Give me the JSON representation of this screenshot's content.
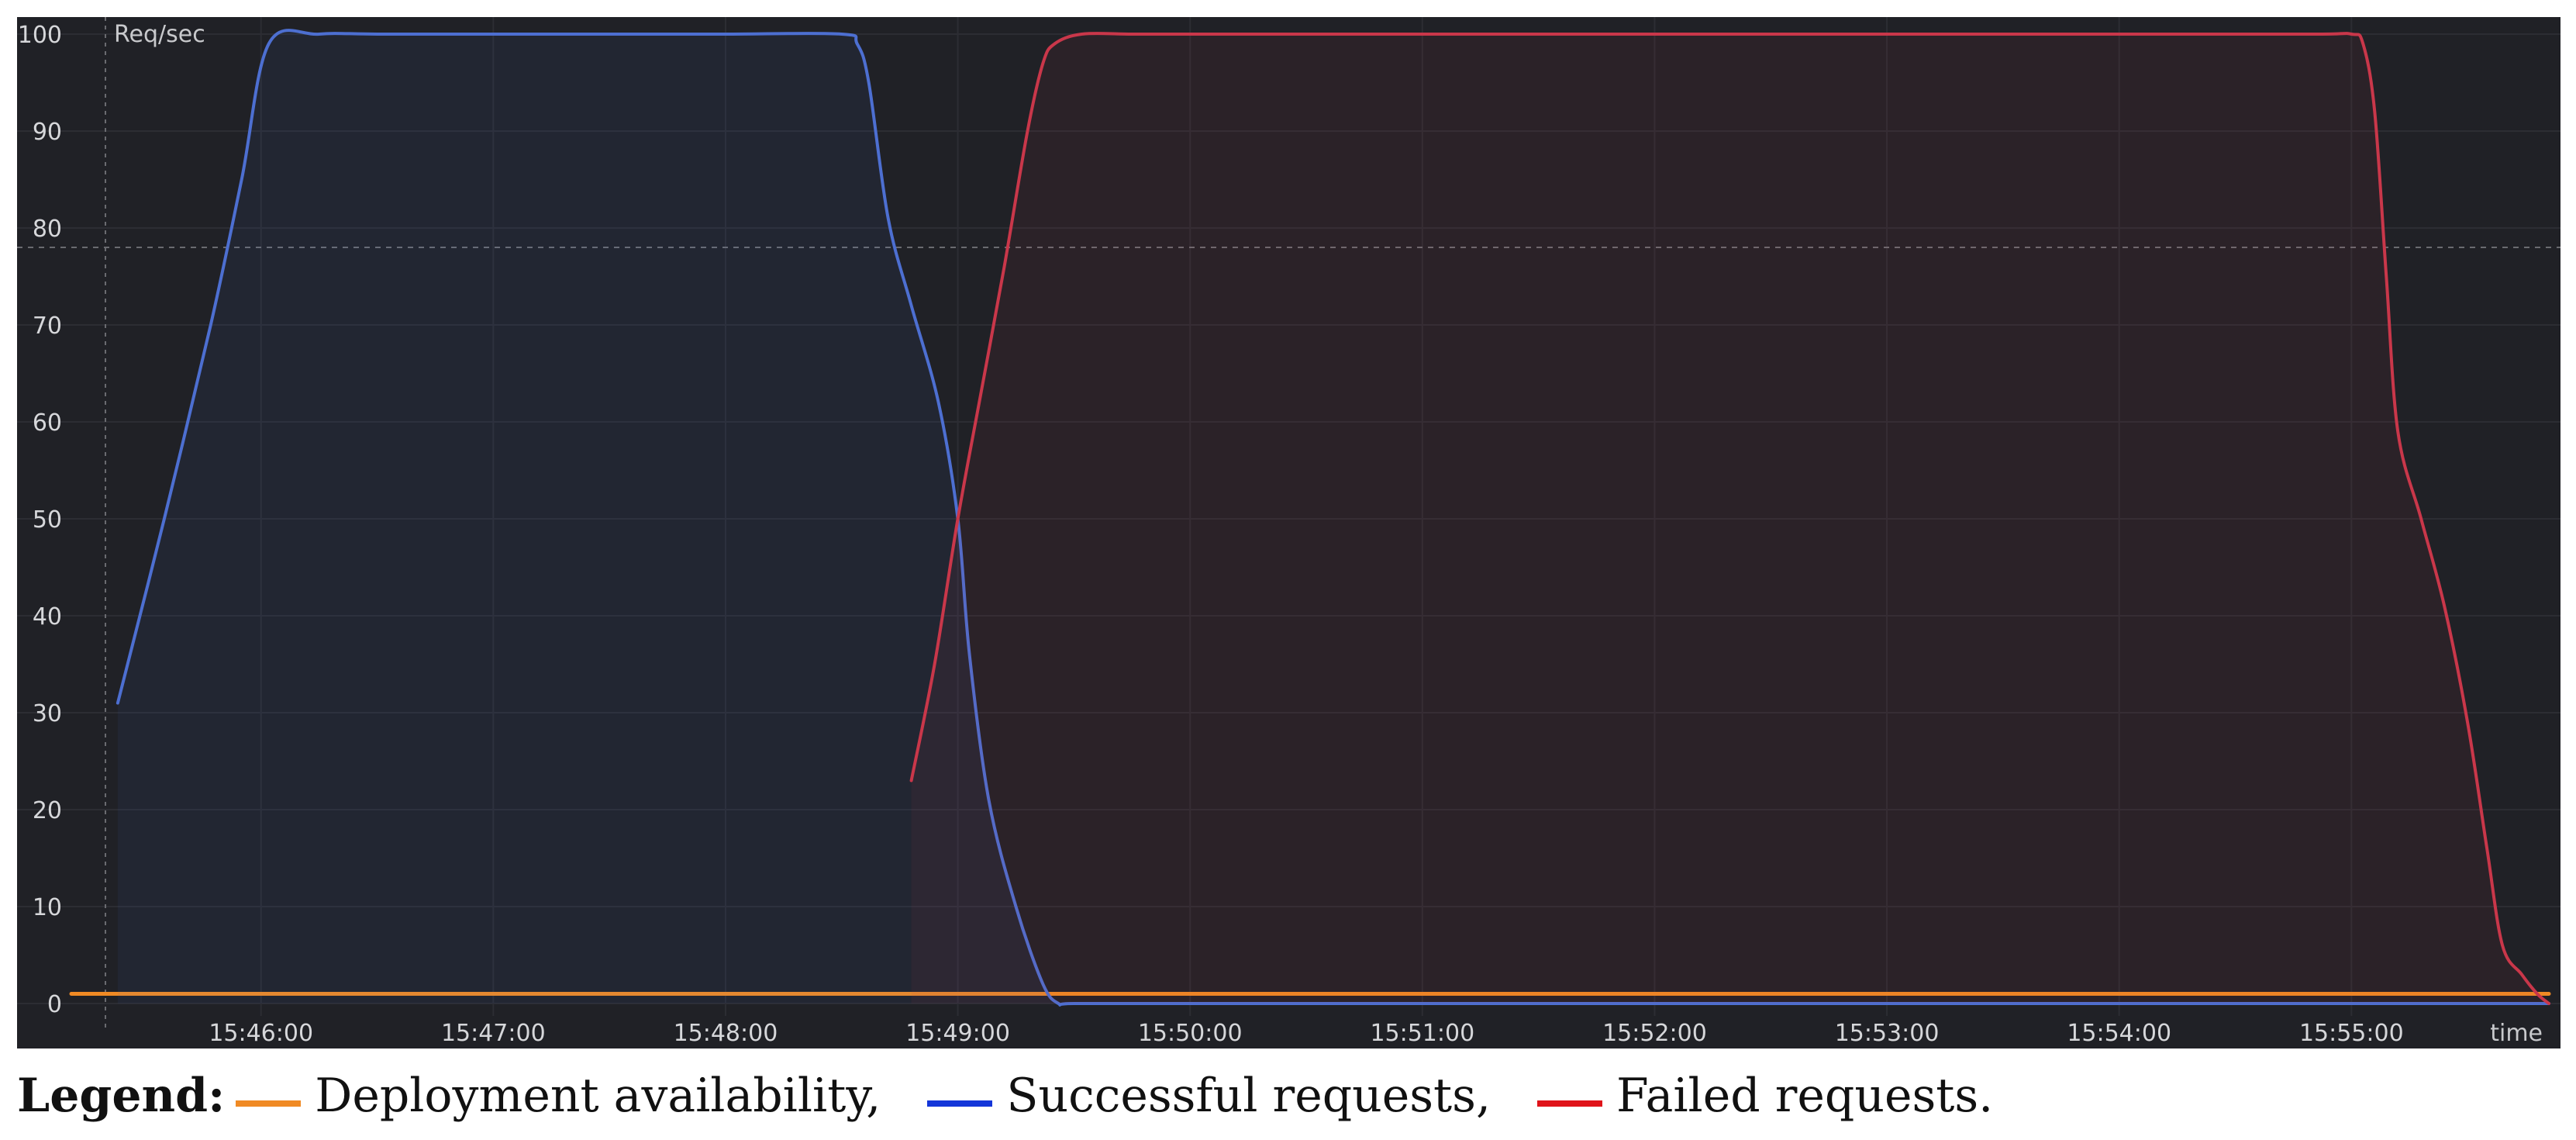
{
  "chart_data": {
    "type": "line",
    "y_unit_label": "Req/sec",
    "xlabel": "time",
    "ylim": [
      0,
      100
    ],
    "y_ticks": [
      0,
      10,
      20,
      30,
      40,
      50,
      60,
      70,
      80,
      90,
      100
    ],
    "x_ticks": [
      "15:46:00",
      "15:47:00",
      "15:48:00",
      "15:49:00",
      "15:50:00",
      "15:51:00",
      "15:52:00",
      "15:53:00",
      "15:54:00",
      "15:55:00"
    ],
    "xlim": [
      "15:45:11",
      "15:55:51"
    ],
    "grid": true,
    "threshold_dashed_line": 78,
    "background_color": "#202126",
    "series": [
      {
        "key": "availability",
        "color": "#f08a24",
        "fill": false,
        "x": [
          "15:45:11",
          "15:55:51"
        ],
        "y": [
          1,
          1
        ]
      },
      {
        "key": "success",
        "color": "#4d6fd1",
        "fill": true,
        "x": [
          "15:45:23",
          "15:45:35",
          "15:45:47",
          "15:45:55",
          "15:46:02",
          "15:46:15",
          "15:46:30",
          "15:47:00",
          "15:47:30",
          "15:48:00",
          "15:48:30",
          "15:48:34",
          "15:48:37",
          "15:48:42",
          "15:48:48",
          "15:48:55",
          "15:49:00",
          "15:49:03",
          "15:49:08",
          "15:49:15",
          "15:49:22",
          "15:49:26",
          "15:49:30",
          "15:50:00",
          "15:51:00",
          "15:52:00",
          "15:53:00",
          "15:54:00",
          "15:55:00",
          "15:55:51"
        ],
        "y": [
          31,
          50,
          70,
          85,
          99,
          100,
          100,
          100,
          100,
          100,
          100,
          99,
          95,
          81,
          72,
          62,
          50,
          36,
          21,
          10,
          2,
          0,
          0,
          0,
          0,
          0,
          0,
          0,
          0,
          0
        ]
      },
      {
        "key": "failed",
        "color": "#c9374a",
        "fill": true,
        "x": [
          "15:48:48",
          "15:48:54",
          "15:49:00",
          "15:49:06",
          "15:49:12",
          "15:49:18",
          "15:49:22",
          "15:49:25",
          "15:49:32",
          "15:49:45",
          "15:50:00",
          "15:51:00",
          "15:52:00",
          "15:53:00",
          "15:54:00",
          "15:54:50",
          "15:55:00",
          "15:55:03",
          "15:55:06",
          "15:55:09",
          "15:55:12",
          "15:55:18",
          "15:55:24",
          "15:55:30",
          "15:55:35",
          "15:55:39",
          "15:55:44",
          "15:55:48",
          "15:55:51"
        ],
        "y": [
          23,
          35,
          50,
          63,
          76,
          90,
          97,
          99,
          100,
          100,
          100,
          100,
          100,
          100,
          100,
          100,
          100,
          99,
          92,
          75,
          59,
          50,
          41,
          29,
          16,
          6,
          3,
          1,
          0
        ]
      }
    ]
  },
  "legend": {
    "title": "Legend:",
    "items": [
      {
        "label": "Deployment availability,",
        "color": "#f08a24"
      },
      {
        "label": "Successful requests,",
        "color": "#1436d9"
      },
      {
        "label": "Failed requests.",
        "color": "#e0141a"
      }
    ]
  }
}
